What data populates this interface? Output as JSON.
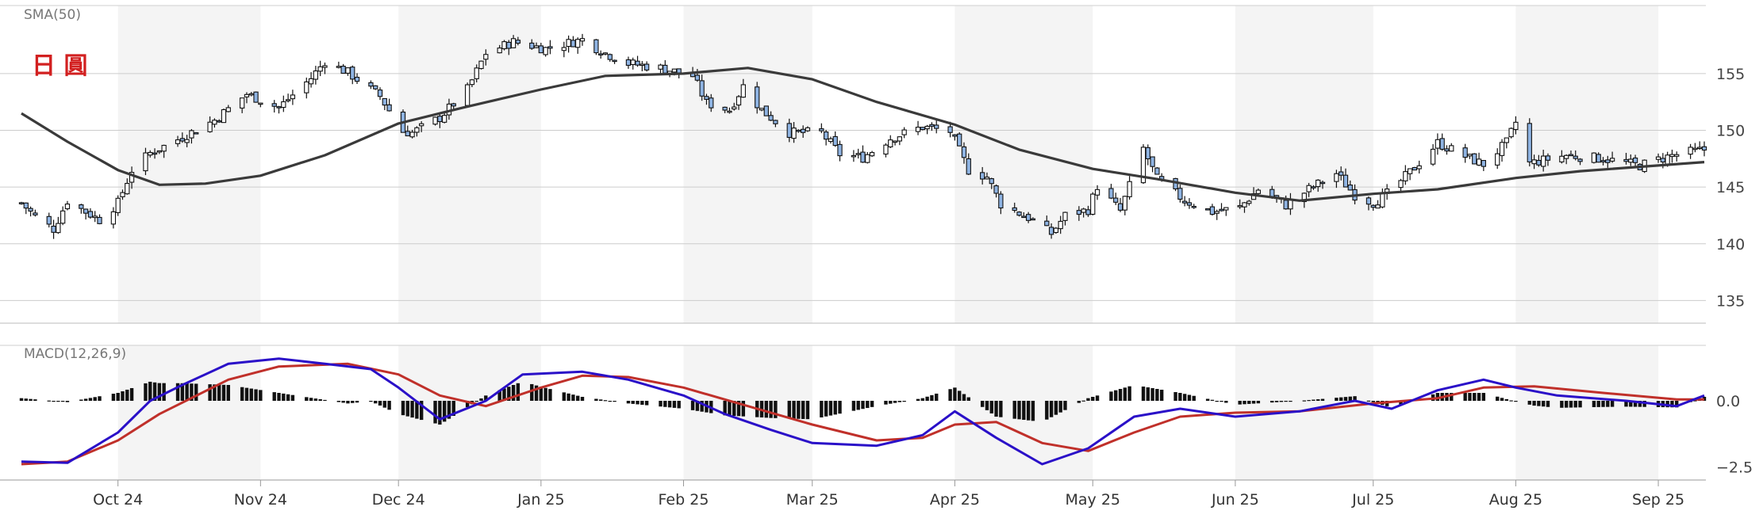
{
  "chart_data": [
    {
      "type": "candlestick",
      "panel": "price",
      "title": "",
      "indicator_label": "SMA(50)",
      "annotation": "日 圓",
      "ylim": [
        133,
        161
      ],
      "yticks": [
        135,
        140,
        145,
        150,
        155
      ],
      "grid": true,
      "x_range": [
        "2024-09-10",
        "2025-09-11"
      ],
      "months": [
        "Oct 24",
        "Nov 24",
        "Dec 24",
        "Jan 25",
        "Feb 25",
        "Mar 25",
        "Apr 25",
        "May 25",
        "Jun 25",
        "Jul 25",
        "Aug 25",
        "Sep 25"
      ],
      "close_path": [
        [
          "2024-09-10",
          143.6
        ],
        [
          "2024-09-13",
          142.4
        ],
        [
          "2024-09-17",
          141.3
        ],
        [
          "2024-09-20",
          143.8
        ],
        [
          "2024-09-27",
          142.1
        ],
        [
          "2024-10-01",
          143.6
        ],
        [
          "2024-10-04",
          146.5
        ],
        [
          "2024-10-08",
          148.0
        ],
        [
          "2024-10-15",
          149.4
        ],
        [
          "2024-10-22",
          150.9
        ],
        [
          "2024-10-29",
          153.2
        ],
        [
          "2024-11-05",
          152.0
        ],
        [
          "2024-11-12",
          154.6
        ],
        [
          "2024-11-15",
          156.1
        ],
        [
          "2024-11-20",
          155.1
        ],
        [
          "2024-11-27",
          153.0
        ],
        [
          "2024-12-02",
          149.9
        ],
        [
          "2024-12-04",
          149.8
        ],
        [
          "2024-12-10",
          151.1
        ],
        [
          "2024-12-16",
          153.6
        ],
        [
          "2024-12-20",
          156.8
        ],
        [
          "2024-12-26",
          157.8
        ],
        [
          "2025-01-02",
          157.2
        ],
        [
          "2025-01-10",
          158.0
        ],
        [
          "2025-01-15",
          156.8
        ],
        [
          "2025-01-20",
          155.9
        ],
        [
          "2025-01-27",
          155.5
        ],
        [
          "2025-02-03",
          154.8
        ],
        [
          "2025-02-06",
          152.4
        ],
        [
          "2025-02-11",
          151.8
        ],
        [
          "2025-02-14",
          153.9
        ],
        [
          "2025-02-18",
          151.8
        ],
        [
          "2025-02-24",
          149.8
        ],
        [
          "2025-03-03",
          149.8
        ],
        [
          "2025-03-07",
          147.9
        ],
        [
          "2025-03-12",
          147.6
        ],
        [
          "2025-03-18",
          149.3
        ],
        [
          "2025-03-25",
          150.3
        ],
        [
          "2025-03-31",
          149.9
        ],
        [
          "2025-04-04",
          146.5
        ],
        [
          "2025-04-08",
          145.9
        ],
        [
          "2025-04-11",
          143.5
        ],
        [
          "2025-04-17",
          142.3
        ],
        [
          "2025-04-22",
          140.9
        ],
        [
          "2025-04-25",
          142.5
        ],
        [
          "2025-04-30",
          143.0
        ],
        [
          "2025-05-02",
          145.1
        ],
        [
          "2025-05-07",
          142.9
        ],
        [
          "2025-05-12",
          148.4
        ],
        [
          "2025-05-15",
          145.7
        ],
        [
          "2025-05-21",
          143.8
        ],
        [
          "2025-05-27",
          142.8
        ],
        [
          "2025-06-02",
          143.2
        ],
        [
          "2025-06-06",
          144.8
        ],
        [
          "2025-06-12",
          143.4
        ],
        [
          "2025-06-17",
          144.8
        ],
        [
          "2025-06-23",
          146.2
        ],
        [
          "2025-06-27",
          144.3
        ],
        [
          "2025-07-01",
          143.6
        ],
        [
          "2025-07-04",
          144.4
        ],
        [
          "2025-07-09",
          146.3
        ],
        [
          "2025-07-15",
          148.9
        ],
        [
          "2025-07-21",
          147.7
        ],
        [
          "2025-07-25",
          147.0
        ],
        [
          "2025-07-30",
          148.9
        ],
        [
          "2025-08-01",
          150.7
        ],
        [
          "2025-08-04",
          147.1
        ],
        [
          "2025-08-12",
          147.8
        ],
        [
          "2025-08-20",
          147.5
        ],
        [
          "2025-08-28",
          146.9
        ],
        [
          "2025-09-04",
          147.8
        ],
        [
          "2025-09-11",
          148.3
        ]
      ],
      "sma_path": [
        [
          "2024-09-10",
          151.5
        ],
        [
          "2024-09-20",
          149.0
        ],
        [
          "2024-10-01",
          146.5
        ],
        [
          "2024-10-10",
          145.2
        ],
        [
          "2024-10-20",
          145.3
        ],
        [
          "2024-11-01",
          146.0
        ],
        [
          "2024-11-15",
          147.8
        ],
        [
          "2024-12-01",
          150.6
        ],
        [
          "2024-12-15",
          152.0
        ],
        [
          "2025-01-01",
          153.6
        ],
        [
          "2025-01-15",
          154.8
        ],
        [
          "2025-02-01",
          155.0
        ],
        [
          "2025-02-15",
          155.5
        ],
        [
          "2025-03-01",
          154.5
        ],
        [
          "2025-03-15",
          152.5
        ],
        [
          "2025-04-01",
          150.5
        ],
        [
          "2025-04-15",
          148.3
        ],
        [
          "2025-05-01",
          146.6
        ],
        [
          "2025-05-15",
          145.7
        ],
        [
          "2025-06-01",
          144.5
        ],
        [
          "2025-06-15",
          143.8
        ],
        [
          "2025-07-01",
          144.4
        ],
        [
          "2025-07-15",
          144.8
        ],
        [
          "2025-08-01",
          145.8
        ],
        [
          "2025-08-15",
          146.4
        ],
        [
          "2025-09-01",
          146.9
        ],
        [
          "2025-09-11",
          147.2
        ]
      ]
    },
    {
      "type": "line",
      "panel": "macd",
      "indicator_label": "MACD(12,26,9)",
      "ylim": [
        -3.0,
        2.1
      ],
      "yticks": [
        {
          "value": 0,
          "label": "0.0"
        },
        {
          "value": -2.5,
          "label": "−2.5"
        }
      ],
      "colors": {
        "macd": "#2a10c8",
        "signal": "#c0302a",
        "histogram": "#111111"
      },
      "macd": [
        [
          "2024-09-10",
          -2.3
        ],
        [
          "2024-09-20",
          -2.35
        ],
        [
          "2024-10-01",
          -1.2
        ],
        [
          "2024-10-08",
          0.0
        ],
        [
          "2024-10-15",
          0.6
        ],
        [
          "2024-10-25",
          1.4
        ],
        [
          "2024-11-05",
          1.6
        ],
        [
          "2024-11-15",
          1.4
        ],
        [
          "2024-11-25",
          1.2
        ],
        [
          "2024-12-01",
          0.5
        ],
        [
          "2024-12-10",
          -0.7
        ],
        [
          "2024-12-20",
          0.0
        ],
        [
          "2024-12-28",
          1.0
        ],
        [
          "2025-01-10",
          1.1
        ],
        [
          "2025-01-20",
          0.8
        ],
        [
          "2025-02-01",
          0.2
        ],
        [
          "2025-02-10",
          -0.5
        ],
        [
          "2025-02-20",
          -1.1
        ],
        [
          "2025-03-01",
          -1.6
        ],
        [
          "2025-03-15",
          -1.7
        ],
        [
          "2025-03-25",
          -1.3
        ],
        [
          "2025-04-01",
          -0.4
        ],
        [
          "2025-04-10",
          -1.4
        ],
        [
          "2025-04-20",
          -2.4
        ],
        [
          "2025-04-30",
          -1.8
        ],
        [
          "2025-05-10",
          -0.6
        ],
        [
          "2025-05-20",
          -0.3
        ],
        [
          "2025-06-01",
          -0.6
        ],
        [
          "2025-06-15",
          -0.4
        ],
        [
          "2025-06-27",
          0.0
        ],
        [
          "2025-07-05",
          -0.3
        ],
        [
          "2025-07-15",
          0.4
        ],
        [
          "2025-07-25",
          0.8
        ],
        [
          "2025-08-01",
          0.5
        ],
        [
          "2025-08-10",
          0.2
        ],
        [
          "2025-08-25",
          0.0
        ],
        [
          "2025-09-05",
          -0.2
        ],
        [
          "2025-09-11",
          0.2
        ]
      ],
      "signal": [
        [
          "2024-09-10",
          -2.4
        ],
        [
          "2024-09-20",
          -2.3
        ],
        [
          "2024-10-01",
          -1.5
        ],
        [
          "2024-10-10",
          -0.5
        ],
        [
          "2024-10-25",
          0.8
        ],
        [
          "2024-11-05",
          1.3
        ],
        [
          "2024-11-20",
          1.4
        ],
        [
          "2024-12-01",
          1.0
        ],
        [
          "2024-12-10",
          0.2
        ],
        [
          "2024-12-20",
          -0.2
        ],
        [
          "2025-01-01",
          0.5
        ],
        [
          "2025-01-10",
          0.95
        ],
        [
          "2025-01-20",
          0.9
        ],
        [
          "2025-02-01",
          0.5
        ],
        [
          "2025-02-15",
          -0.2
        ],
        [
          "2025-03-01",
          -0.9
        ],
        [
          "2025-03-15",
          -1.5
        ],
        [
          "2025-03-25",
          -1.4
        ],
        [
          "2025-04-01",
          -0.9
        ],
        [
          "2025-04-10",
          -0.8
        ],
        [
          "2025-04-20",
          -1.6
        ],
        [
          "2025-04-30",
          -1.9
        ],
        [
          "2025-05-10",
          -1.2
        ],
        [
          "2025-05-20",
          -0.6
        ],
        [
          "2025-06-01",
          -0.45
        ],
        [
          "2025-06-15",
          -0.4
        ],
        [
          "2025-07-01",
          -0.1
        ],
        [
          "2025-07-15",
          0.1
        ],
        [
          "2025-07-25",
          0.5
        ],
        [
          "2025-08-05",
          0.55
        ],
        [
          "2025-08-20",
          0.3
        ],
        [
          "2025-09-05",
          0.05
        ],
        [
          "2025-09-11",
          0.05
        ]
      ]
    }
  ]
}
